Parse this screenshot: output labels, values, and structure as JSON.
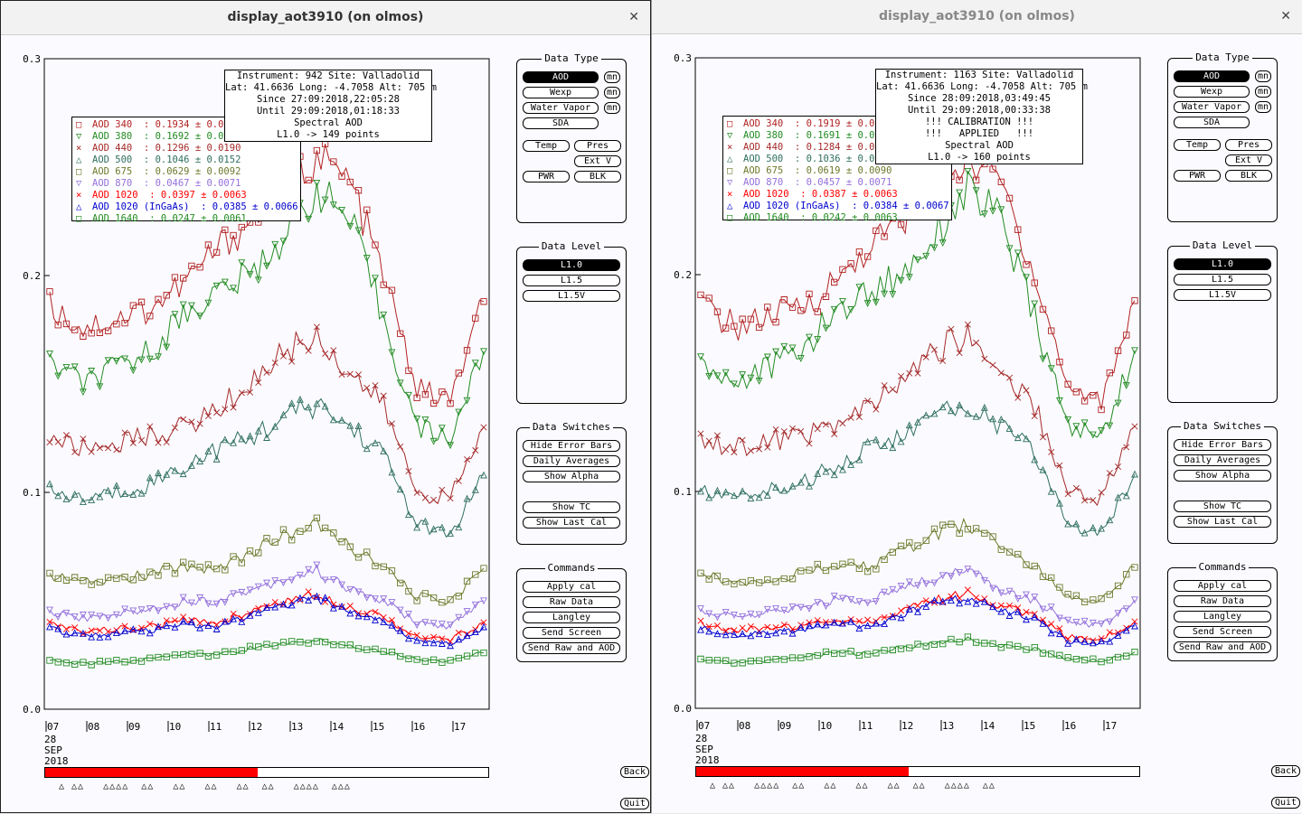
{
  "windows": [
    {
      "title": "display_aot3910 (on olmos)",
      "info_lines": [
        "Instrument: 942 Site: Valladolid",
        "Lat: 41.6636 Long: -4.7058 Alt: 705 m",
        "Since 27:09:2018,22:05:28",
        "Until 29:09:2018,01:18:33",
        "Spectral AOD",
        "L1.0 -> 149 points"
      ],
      "legend": [
        {
          "label": "AOD 340",
          "value": "0.1934",
          "err": "0.0",
          "color": "#b22222",
          "marker": "square"
        },
        {
          "label": "AOD 380",
          "value": "0.1692",
          "err": "0.0",
          "color": "#228b22",
          "marker": "tri-down"
        },
        {
          "label": "AOD 440",
          "value": "0.1296",
          "err": "0.0190",
          "color": "#a52a2a",
          "marker": "x"
        },
        {
          "label": "AOD 500",
          "value": "0.1046",
          "err": "0.0152",
          "color": "#2f6f5f",
          "marker": "tri-up"
        },
        {
          "label": "AOD 675",
          "value": "0.0629",
          "err": "0.0092",
          "color": "#6b7a2a",
          "marker": "square"
        },
        {
          "label": "AOD 870",
          "value": "0.0467",
          "err": "0.0071",
          "color": "#9370db",
          "marker": "tri-down"
        },
        {
          "label": "AOD 1020",
          "value": "0.0397",
          "err": "0.0063",
          "color": "#ff0000",
          "marker": "x"
        },
        {
          "label": "AOD 1020 (InGaAs)",
          "value": "0.0385",
          "err": "0.0066",
          "color": "#0000cd",
          "marker": "tri-up"
        },
        {
          "label": "AOD 1640",
          "value": "0.0247",
          "err": "0.0061",
          "color": "#228b22",
          "marker": "square"
        }
      ],
      "progress": 0.48,
      "marker_row": "△ △△   △△△△  △△   △△   △△   △△  △△   △△△△  △△△"
    },
    {
      "title": "display_aot3910 (on olmos)",
      "info_lines": [
        "Instrument: 1163 Site: Valladolid",
        "Lat: 41.6636 Long: -4.7058 Alt: 705 m",
        "Since 28:09:2018,03:49:45",
        "Until 29:09:2018,00:33:38",
        "!!! CALIBRATION !!!",
        "!!!   APPLIED   !!!",
        "Spectral AOD",
        "L1.0 -> 160 points"
      ],
      "legend": [
        {
          "label": "AOD 340",
          "value": "0.1919",
          "err": "0.0",
          "color": "#b22222",
          "marker": "square"
        },
        {
          "label": "AOD 380",
          "value": "0.1691",
          "err": "0.0",
          "color": "#228b22",
          "marker": "tri-down"
        },
        {
          "label": "AOD 440",
          "value": "0.1284",
          "err": "0.0",
          "color": "#a52a2a",
          "marker": "x"
        },
        {
          "label": "AOD 500",
          "value": "0.1036",
          "err": "0.0",
          "color": "#2f6f5f",
          "marker": "tri-up"
        },
        {
          "label": "AOD 675",
          "value": "0.0619",
          "err": "0.0090",
          "color": "#6b7a2a",
          "marker": "square"
        },
        {
          "label": "AOD 870",
          "value": "0.0457",
          "err": "0.0071",
          "color": "#9370db",
          "marker": "tri-down"
        },
        {
          "label": "AOD 1020",
          "value": "0.0387",
          "err": "0.0063",
          "color": "#ff0000",
          "marker": "x"
        },
        {
          "label": "AOD 1020 (InGaAs)",
          "value": "0.0384",
          "err": "0.0067",
          "color": "#0000cd",
          "marker": "tri-up"
        },
        {
          "label": "AOD 1640",
          "value": "0.0242",
          "err": "0.0063",
          "color": "#228b22",
          "marker": "square"
        }
      ],
      "progress": 0.48,
      "marker_row": "△ △△   △△△△  △△   △△   △△   △△  △△   △△△△  △△"
    }
  ],
  "axis": {
    "y_ticks": [
      "0.0",
      "0.1",
      "0.2",
      "0.3"
    ],
    "x_ticks": [
      "07",
      "08",
      "09",
      "10",
      "11",
      "12",
      "13",
      "14",
      "15",
      "16",
      "17"
    ],
    "date_lines": [
      "28",
      "SEP",
      "2018"
    ]
  },
  "panels": {
    "data_type": {
      "title": "Data Type",
      "buttons": [
        "AOD",
        "Wexp",
        "Water Vapor",
        "SDA"
      ],
      "mn": "mn",
      "temp": "Temp",
      "pres": "Pres",
      "extv": "Ext V",
      "pwr": "PWR",
      "blk": "BLK"
    },
    "data_level": {
      "title": "Data Level",
      "buttons": [
        "L1.0",
        "L1.5",
        "L1.5V"
      ]
    },
    "data_switches": {
      "title": "Data Switches",
      "buttons": [
        "Hide Error Bars",
        "Daily Averages",
        "Show Alpha",
        "Show TC",
        "Show Last Cal"
      ]
    },
    "commands": {
      "title": "Commands",
      "buttons": [
        "Apply cal",
        "Raw Data",
        "Langley",
        "Send Screen",
        "Send Raw and AOD"
      ]
    }
  },
  "nav": {
    "back": "Back",
    "quit": "Quit"
  },
  "chart_data": [
    {
      "type": "line",
      "title": "",
      "xlabel": "",
      "ylabel": "",
      "ylim": [
        0,
        0.3
      ],
      "x_ticks": [
        "07",
        "08",
        "09",
        "10",
        "11",
        "12",
        "13",
        "14",
        "15",
        "16",
        "17"
      ],
      "series": [
        {
          "name": "AOD 340",
          "values": [
            0.186,
            0.176,
            0.18,
            0.185,
            0.196,
            0.212,
            0.225,
            0.24,
            0.255,
            0.243,
            0.2,
            0.148,
            0.142,
            0.188
          ]
        },
        {
          "name": "AOD 380",
          "values": [
            0.16,
            0.15,
            0.157,
            0.165,
            0.182,
            0.192,
            0.2,
            0.218,
            0.24,
            0.225,
            0.18,
            0.13,
            0.125,
            0.165
          ]
        },
        {
          "name": "AOD 440",
          "values": [
            0.125,
            0.12,
            0.123,
            0.126,
            0.13,
            0.138,
            0.15,
            0.165,
            0.172,
            0.155,
            0.14,
            0.1,
            0.097,
            0.13
          ]
        },
        {
          "name": "AOD 500",
          "values": [
            0.1,
            0.097,
            0.1,
            0.104,
            0.112,
            0.12,
            0.125,
            0.135,
            0.14,
            0.13,
            0.118,
            0.085,
            0.08,
            0.108
          ]
        },
        {
          "name": "AOD 675",
          "values": [
            0.062,
            0.058,
            0.06,
            0.062,
            0.066,
            0.065,
            0.072,
            0.08,
            0.085,
            0.075,
            0.065,
            0.052,
            0.05,
            0.065
          ]
        },
        {
          "name": "AOD 870",
          "values": [
            0.045,
            0.042,
            0.044,
            0.046,
            0.05,
            0.05,
            0.055,
            0.06,
            0.064,
            0.055,
            0.05,
            0.04,
            0.038,
            0.05
          ]
        },
        {
          "name": "AOD 1020",
          "values": [
            0.039,
            0.036,
            0.037,
            0.038,
            0.041,
            0.04,
            0.045,
            0.05,
            0.053,
            0.047,
            0.043,
            0.033,
            0.032,
            0.04
          ]
        },
        {
          "name": "AOD 1020 (InGaAs)",
          "values": [
            0.037,
            0.034,
            0.035,
            0.036,
            0.039,
            0.038,
            0.043,
            0.048,
            0.051,
            0.045,
            0.041,
            0.031,
            0.03,
            0.038
          ]
        },
        {
          "name": "AOD 1640",
          "values": [
            0.023,
            0.021,
            0.022,
            0.023,
            0.026,
            0.025,
            0.028,
            0.03,
            0.032,
            0.029,
            0.027,
            0.023,
            0.022,
            0.026
          ]
        }
      ]
    }
  ]
}
